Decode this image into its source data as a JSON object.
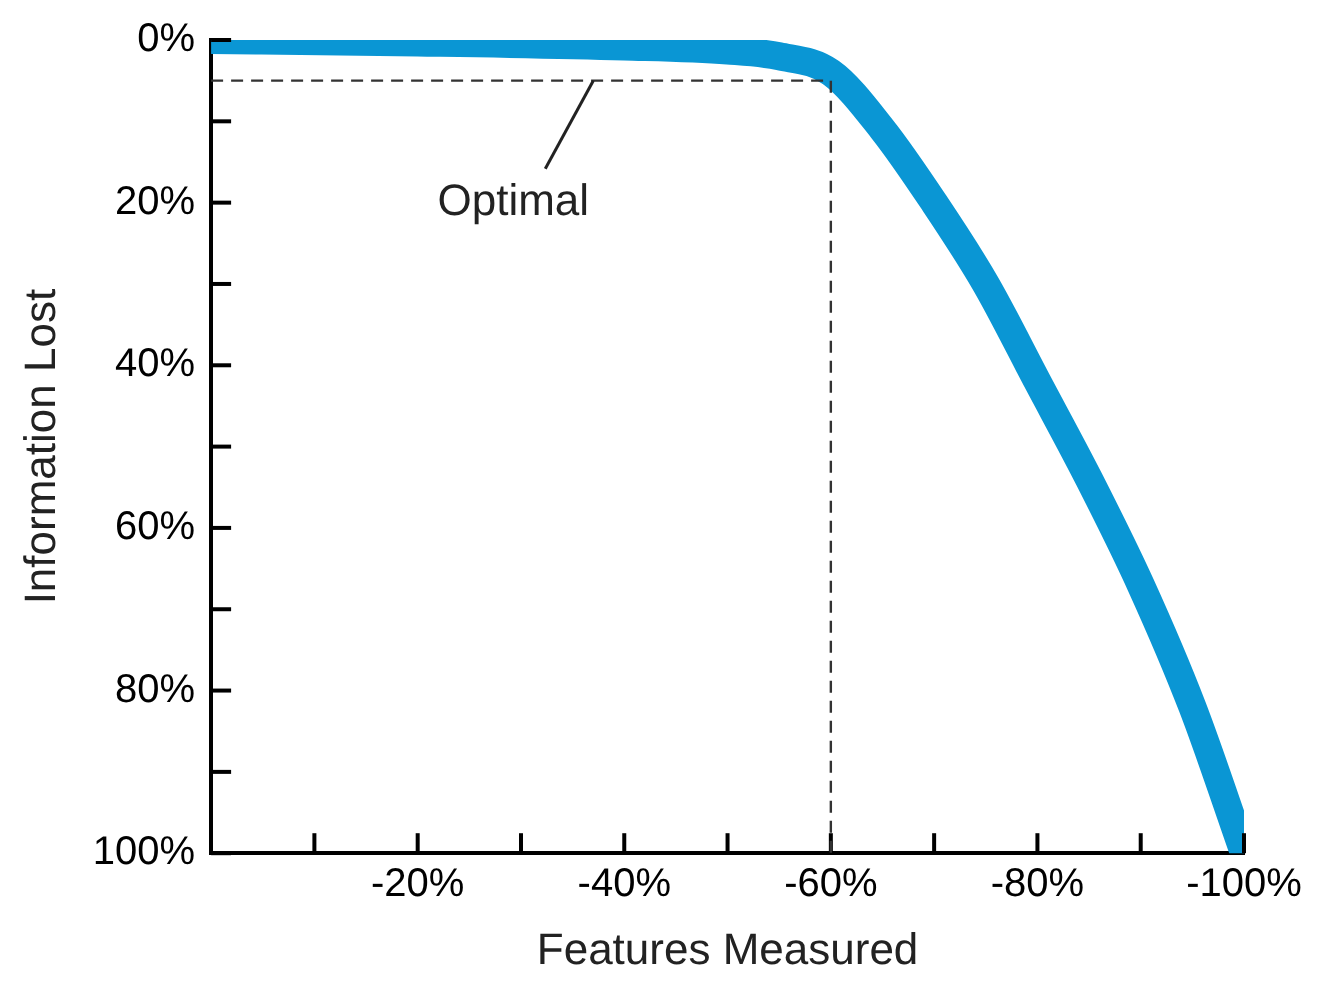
{
  "chart_data": {
    "type": "line",
    "xlabel": "Features Measured",
    "ylabel": "Information Lost",
    "x": [
      0,
      -20,
      -40,
      -50,
      -55,
      -60,
      -65,
      -70,
      -75,
      -80,
      -85,
      -90,
      -95,
      -100
    ],
    "series": [
      {
        "color": "#0a96d4",
        "values": [
          0,
          0.3,
          0.8,
          1.3,
          2,
          4,
          11,
          20,
          30,
          42,
          54,
          67,
          82,
          100
        ]
      }
    ],
    "xlim": [
      0,
      -100
    ],
    "xticks": [
      {
        "value": -10,
        "label": null
      },
      {
        "value": -20,
        "label": "-20%"
      },
      {
        "value": -30,
        "label": null
      },
      {
        "value": -40,
        "label": "-40%"
      },
      {
        "value": -50,
        "label": null
      },
      {
        "value": -60,
        "label": "-60%"
      },
      {
        "value": -70,
        "label": null
      },
      {
        "value": -80,
        "label": "-80%"
      },
      {
        "value": -90,
        "label": null
      },
      {
        "value": -100,
        "label": "-100%"
      }
    ],
    "ylim": [
      100,
      0
    ],
    "yticks": [
      {
        "value": 0,
        "label": "0%"
      },
      {
        "value": 10,
        "label": null
      },
      {
        "value": 20,
        "label": "20%"
      },
      {
        "value": 30,
        "label": null
      },
      {
        "value": 40,
        "label": "40%"
      },
      {
        "value": 50,
        "label": null
      },
      {
        "value": 60,
        "label": "60%"
      },
      {
        "value": 70,
        "label": null
      },
      {
        "value": 80,
        "label": "80%"
      },
      {
        "value": 90,
        "label": null
      },
      {
        "value": 100,
        "label": "100%"
      }
    ],
    "ref_lines": [
      {
        "axis": "y",
        "value": 5,
        "color": "#333333",
        "line_style": "dashed"
      },
      {
        "axis": "x",
        "value": -60,
        "color": "#333333",
        "line_style": "dashed"
      }
    ],
    "annotations": [
      {
        "text": "Optimal",
        "x": -37,
        "y": 5
      }
    ],
    "grid": false,
    "legend": false,
    "marker": "none",
    "line_style": "solid"
  }
}
